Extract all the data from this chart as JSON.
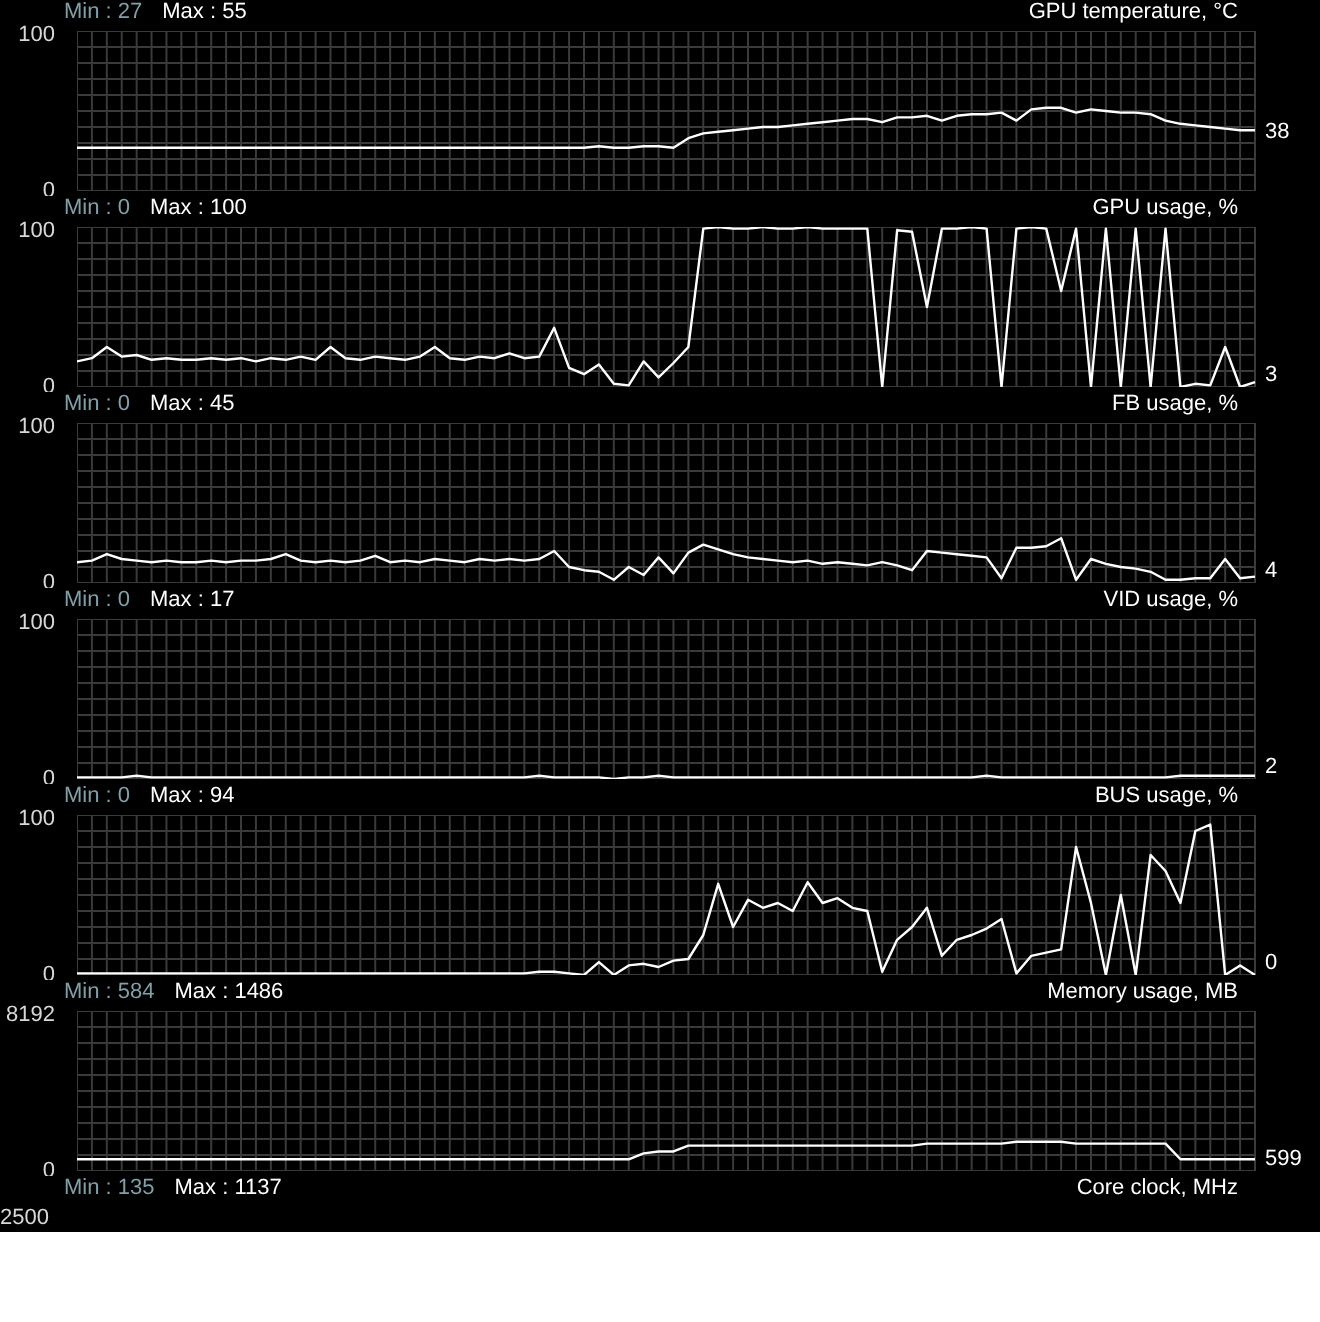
{
  "chart_data": [
    {
      "type": "line",
      "title": "GPU temperature, °C",
      "categories": [
        null,
        null,
        null,
        null,
        null,
        null,
        null,
        null,
        null,
        null,
        null,
        null,
        null,
        null,
        null,
        null,
        null,
        null,
        null,
        null,
        null,
        null,
        null,
        null,
        null,
        null,
        null,
        null,
        null,
        null,
        null,
        null,
        null,
        null,
        null,
        null,
        null,
        null,
        null,
        null,
        null,
        null,
        null,
        null,
        null,
        null,
        null,
        null,
        null,
        null,
        null,
        null,
        null,
        null,
        null,
        null,
        null,
        null,
        null,
        null,
        null,
        null,
        null,
        null,
        null,
        null,
        null,
        null,
        null,
        null,
        null,
        null,
        null,
        null,
        null,
        null,
        null,
        null,
        null,
        null
      ],
      "values": [
        27,
        27,
        27,
        27,
        27,
        27,
        27,
        27,
        27,
        27,
        27,
        27,
        27,
        27,
        27,
        27,
        27,
        27,
        27,
        27,
        27,
        27,
        27,
        27,
        27,
        27,
        27,
        27,
        27,
        27,
        27,
        27,
        27,
        27,
        27,
        28,
        27,
        27,
        28,
        28,
        27,
        33,
        36,
        37,
        38,
        39,
        40,
        40,
        41,
        42,
        43,
        44,
        45,
        45,
        43,
        46,
        46,
        47,
        44,
        47,
        48,
        48,
        49,
        44,
        51,
        52,
        52,
        49,
        51,
        50,
        49,
        49,
        48,
        44,
        42,
        41,
        40,
        39,
        38,
        38
      ],
      "color": "#ffffff",
      "ylim": [
        0,
        100
      ],
      "yticks": [
        0,
        {
          "value": 10,
          "label": null
        },
        {
          "value": 20,
          "label": null
        },
        {
          "value": 30,
          "label": null
        },
        {
          "value": 40,
          "label": null
        },
        {
          "value": 50,
          "label": null
        },
        {
          "value": 60,
          "label": null
        },
        {
          "value": 70,
          "label": null
        },
        {
          "value": 80,
          "label": null
        },
        {
          "value": 90,
          "label": null
        },
        100
      ],
      "grid": true,
      "annotations": [
        "Min : 27",
        "Max : 55",
        "38"
      ]
    },
    {
      "type": "line",
      "title": "GPU usage, %",
      "categories": [
        null,
        null,
        null,
        null,
        null,
        null,
        null,
        null,
        null,
        null,
        null,
        null,
        null,
        null,
        null,
        null,
        null,
        null,
        null,
        null,
        null,
        null,
        null,
        null,
        null,
        null,
        null,
        null,
        null,
        null,
        null,
        null,
        null,
        null,
        null,
        null,
        null,
        null,
        null,
        null,
        null,
        null,
        null,
        null,
        null,
        null,
        null,
        null,
        null,
        null,
        null,
        null,
        null,
        null,
        null,
        null,
        null,
        null,
        null,
        null,
        null,
        null,
        null,
        null,
        null,
        null,
        null,
        null,
        null,
        null,
        null,
        null,
        null,
        null,
        null,
        null,
        null,
        null,
        null,
        null
      ],
      "values": [
        16,
        18,
        25,
        19,
        20,
        17,
        18,
        17,
        17,
        18,
        17,
        18,
        16,
        18,
        17,
        19,
        17,
        25,
        18,
        17,
        19,
        18,
        17,
        19,
        25,
        18,
        17,
        19,
        18,
        21,
        18,
        19,
        37,
        12,
        8,
        14,
        2,
        1,
        16,
        6,
        15,
        25,
        99,
        100,
        99,
        99,
        100,
        99,
        99,
        100,
        99,
        99,
        99,
        99,
        0,
        98,
        97,
        50,
        99,
        99,
        100,
        99,
        0,
        99,
        100,
        99,
        60,
        99,
        0,
        99,
        0,
        99,
        0,
        99,
        0,
        2,
        1,
        25,
        0,
        3
      ],
      "color": "#ffffff",
      "ylim": [
        0,
        100
      ],
      "yticks": [
        0,
        {
          "value": 10,
          "label": null
        },
        {
          "value": 20,
          "label": null
        },
        {
          "value": 30,
          "label": null
        },
        {
          "value": 40,
          "label": null
        },
        {
          "value": 50,
          "label": null
        },
        {
          "value": 60,
          "label": null
        },
        {
          "value": 70,
          "label": null
        },
        {
          "value": 80,
          "label": null
        },
        {
          "value": 90,
          "label": null
        },
        100
      ],
      "grid": true,
      "annotations": [
        "Min : 0",
        "Max : 100",
        "3"
      ]
    },
    {
      "type": "line",
      "title": "FB usage, %",
      "categories": [
        null,
        null,
        null,
        null,
        null,
        null,
        null,
        null,
        null,
        null,
        null,
        null,
        null,
        null,
        null,
        null,
        null,
        null,
        null,
        null,
        null,
        null,
        null,
        null,
        null,
        null,
        null,
        null,
        null,
        null,
        null,
        null,
        null,
        null,
        null,
        null,
        null,
        null,
        null,
        null,
        null,
        null,
        null,
        null,
        null,
        null,
        null,
        null,
        null,
        null,
        null,
        null,
        null,
        null,
        null,
        null,
        null,
        null,
        null,
        null,
        null,
        null,
        null,
        null,
        null,
        null,
        null,
        null,
        null,
        null,
        null,
        null,
        null,
        null,
        null,
        null,
        null,
        null,
        null,
        null
      ],
      "values": [
        13,
        14,
        18,
        15,
        14,
        13,
        14,
        13,
        13,
        14,
        13,
        14,
        14,
        15,
        18,
        14,
        13,
        14,
        13,
        14,
        17,
        13,
        14,
        13,
        15,
        14,
        13,
        15,
        14,
        15,
        14,
        15,
        20,
        10,
        8,
        7,
        2,
        10,
        5,
        16,
        6,
        19,
        24,
        21,
        18,
        16,
        15,
        14,
        13,
        14,
        12,
        13,
        12,
        11,
        13,
        11,
        8,
        20,
        19,
        18,
        17,
        16,
        3,
        22,
        22,
        23,
        28,
        2,
        15,
        12,
        10,
        9,
        7,
        2,
        2,
        3,
        3,
        15,
        3,
        4
      ],
      "color": "#ffffff",
      "ylim": [
        0,
        100
      ],
      "yticks": [
        0,
        {
          "value": 10,
          "label": null
        },
        {
          "value": 20,
          "label": null
        },
        {
          "value": 30,
          "label": null
        },
        {
          "value": 40,
          "label": null
        },
        {
          "value": 50,
          "label": null
        },
        {
          "value": 60,
          "label": null
        },
        {
          "value": 70,
          "label": null
        },
        {
          "value": 80,
          "label": null
        },
        {
          "value": 90,
          "label": null
        },
        100
      ],
      "grid": true,
      "annotations": [
        "Min : 0",
        "Max : 45",
        "4"
      ]
    },
    {
      "type": "line",
      "title": "VID usage, %",
      "categories": [
        null,
        null,
        null,
        null,
        null,
        null,
        null,
        null,
        null,
        null,
        null,
        null,
        null,
        null,
        null,
        null,
        null,
        null,
        null,
        null,
        null,
        null,
        null,
        null,
        null,
        null,
        null,
        null,
        null,
        null,
        null,
        null,
        null,
        null,
        null,
        null,
        null,
        null,
        null,
        null,
        null,
        null,
        null,
        null,
        null,
        null,
        null,
        null,
        null,
        null,
        null,
        null,
        null,
        null,
        null,
        null,
        null,
        null,
        null,
        null,
        null,
        null,
        null,
        null,
        null,
        null,
        null,
        null,
        null,
        null,
        null,
        null,
        null,
        null,
        null,
        null,
        null,
        null,
        null,
        null
      ],
      "values": [
        1,
        1,
        1,
        1,
        2,
        1,
        1,
        1,
        1,
        1,
        1,
        1,
        1,
        1,
        1,
        1,
        1,
        1,
        1,
        1,
        1,
        1,
        1,
        1,
        1,
        1,
        1,
        1,
        1,
        1,
        1,
        2,
        1,
        1,
        1,
        1,
        0,
        1,
        1,
        2,
        1,
        1,
        1,
        1,
        1,
        1,
        1,
        1,
        1,
        1,
        1,
        1,
        1,
        1,
        1,
        1,
        1,
        1,
        1,
        1,
        1,
        2,
        1,
        1,
        1,
        1,
        1,
        1,
        1,
        1,
        1,
        1,
        1,
        1,
        2,
        2,
        2,
        2,
        2,
        2
      ],
      "color": "#ffffff",
      "ylim": [
        0,
        100
      ],
      "yticks": [
        0,
        {
          "value": 10,
          "label": null
        },
        {
          "value": 20,
          "label": null
        },
        {
          "value": 30,
          "label": null
        },
        {
          "value": 40,
          "label": null
        },
        {
          "value": 50,
          "label": null
        },
        {
          "value": 60,
          "label": null
        },
        {
          "value": 70,
          "label": null
        },
        {
          "value": 80,
          "label": null
        },
        {
          "value": 90,
          "label": null
        },
        100
      ],
      "grid": true,
      "annotations": [
        "Min : 0",
        "Max : 17",
        "2"
      ]
    },
    {
      "type": "line",
      "title": "BUS usage, %",
      "categories": [
        null,
        null,
        null,
        null,
        null,
        null,
        null,
        null,
        null,
        null,
        null,
        null,
        null,
        null,
        null,
        null,
        null,
        null,
        null,
        null,
        null,
        null,
        null,
        null,
        null,
        null,
        null,
        null,
        null,
        null,
        null,
        null,
        null,
        null,
        null,
        null,
        null,
        null,
        null,
        null,
        null,
        null,
        null,
        null,
        null,
        null,
        null,
        null,
        null,
        null,
        null,
        null,
        null,
        null,
        null,
        null,
        null,
        null,
        null,
        null,
        null,
        null,
        null,
        null,
        null,
        null,
        null,
        null,
        null,
        null,
        null,
        null,
        null,
        null,
        null,
        null,
        null,
        null,
        null,
        null
      ],
      "values": [
        1,
        1,
        1,
        1,
        1,
        1,
        1,
        1,
        1,
        1,
        1,
        1,
        1,
        1,
        1,
        1,
        1,
        1,
        1,
        1,
        1,
        1,
        1,
        1,
        1,
        1,
        1,
        1,
        1,
        1,
        1,
        2,
        2,
        1,
        0,
        8,
        0,
        6,
        7,
        5,
        9,
        10,
        25,
        57,
        30,
        47,
        42,
        45,
        40,
        58,
        45,
        48,
        42,
        40,
        2,
        22,
        30,
        42,
        12,
        22,
        25,
        29,
        35,
        1,
        12,
        14,
        16,
        80,
        45,
        0,
        50,
        0,
        75,
        65,
        45,
        90,
        94,
        0,
        6,
        0
      ],
      "color": "#ffffff",
      "ylim": [
        0,
        100
      ],
      "yticks": [
        0,
        {
          "value": 10,
          "label": null
        },
        {
          "value": 20,
          "label": null
        },
        {
          "value": 30,
          "label": null
        },
        {
          "value": 40,
          "label": null
        },
        {
          "value": 50,
          "label": null
        },
        {
          "value": 60,
          "label": null
        },
        {
          "value": 70,
          "label": null
        },
        {
          "value": 80,
          "label": null
        },
        {
          "value": 90,
          "label": null
        },
        100
      ],
      "grid": true,
      "annotations": [
        "Min : 0",
        "Max : 94",
        "0"
      ]
    },
    {
      "type": "line",
      "title": "Memory usage, MB",
      "categories": [
        null,
        null,
        null,
        null,
        null,
        null,
        null,
        null,
        null,
        null,
        null,
        null,
        null,
        null,
        null,
        null,
        null,
        null,
        null,
        null,
        null,
        null,
        null,
        null,
        null,
        null,
        null,
        null,
        null,
        null,
        null,
        null,
        null,
        null,
        null,
        null,
        null,
        null,
        null,
        null,
        null,
        null,
        null,
        null,
        null,
        null,
        null,
        null,
        null,
        null,
        null,
        null,
        null,
        null,
        null,
        null,
        null,
        null,
        null,
        null,
        null,
        null,
        null,
        null,
        null,
        null,
        null,
        null,
        null,
        null,
        null,
        null,
        null,
        null,
        null,
        null,
        null,
        null,
        null,
        null
      ],
      "values": [
        600,
        600,
        600,
        600,
        600,
        600,
        600,
        600,
        600,
        600,
        600,
        600,
        600,
        600,
        600,
        600,
        600,
        600,
        600,
        600,
        600,
        600,
        600,
        600,
        600,
        600,
        600,
        600,
        600,
        600,
        600,
        600,
        600,
        600,
        600,
        600,
        600,
        600,
        900,
        1000,
        1000,
        1300,
        1300,
        1300,
        1300,
        1300,
        1300,
        1300,
        1300,
        1300,
        1300,
        1300,
        1300,
        1300,
        1300,
        1300,
        1300,
        1400,
        1400,
        1400,
        1400,
        1400,
        1400,
        1500,
        1500,
        1500,
        1500,
        1400,
        1400,
        1400,
        1400,
        1400,
        1400,
        1400,
        600,
        600,
        600,
        600,
        600,
        600
      ],
      "color": "#ffffff",
      "ylim": [
        0,
        8192
      ],
      "yticks": [
        0,
        {
          "value": 819.2,
          "label": null
        },
        {
          "value": 1638.4,
          "label": null
        },
        {
          "value": 2457.6,
          "label": null
        },
        {
          "value": 3276.8,
          "label": null
        },
        {
          "value": 4096,
          "label": null
        },
        {
          "value": 4915.2,
          "label": null
        },
        {
          "value": 5734.4,
          "label": null
        },
        {
          "value": 6553.6,
          "label": null
        },
        {
          "value": 7372.8,
          "label": null
        },
        8192
      ],
      "grid": true,
      "annotations": [
        "Min : 584",
        "Max : 1486",
        "599"
      ]
    },
    {
      "type": "other",
      "title": "Core clock, MHz",
      "annotations": [
        "Min : 135",
        "Max : 1137",
        "2500"
      ]
    }
  ]
}
